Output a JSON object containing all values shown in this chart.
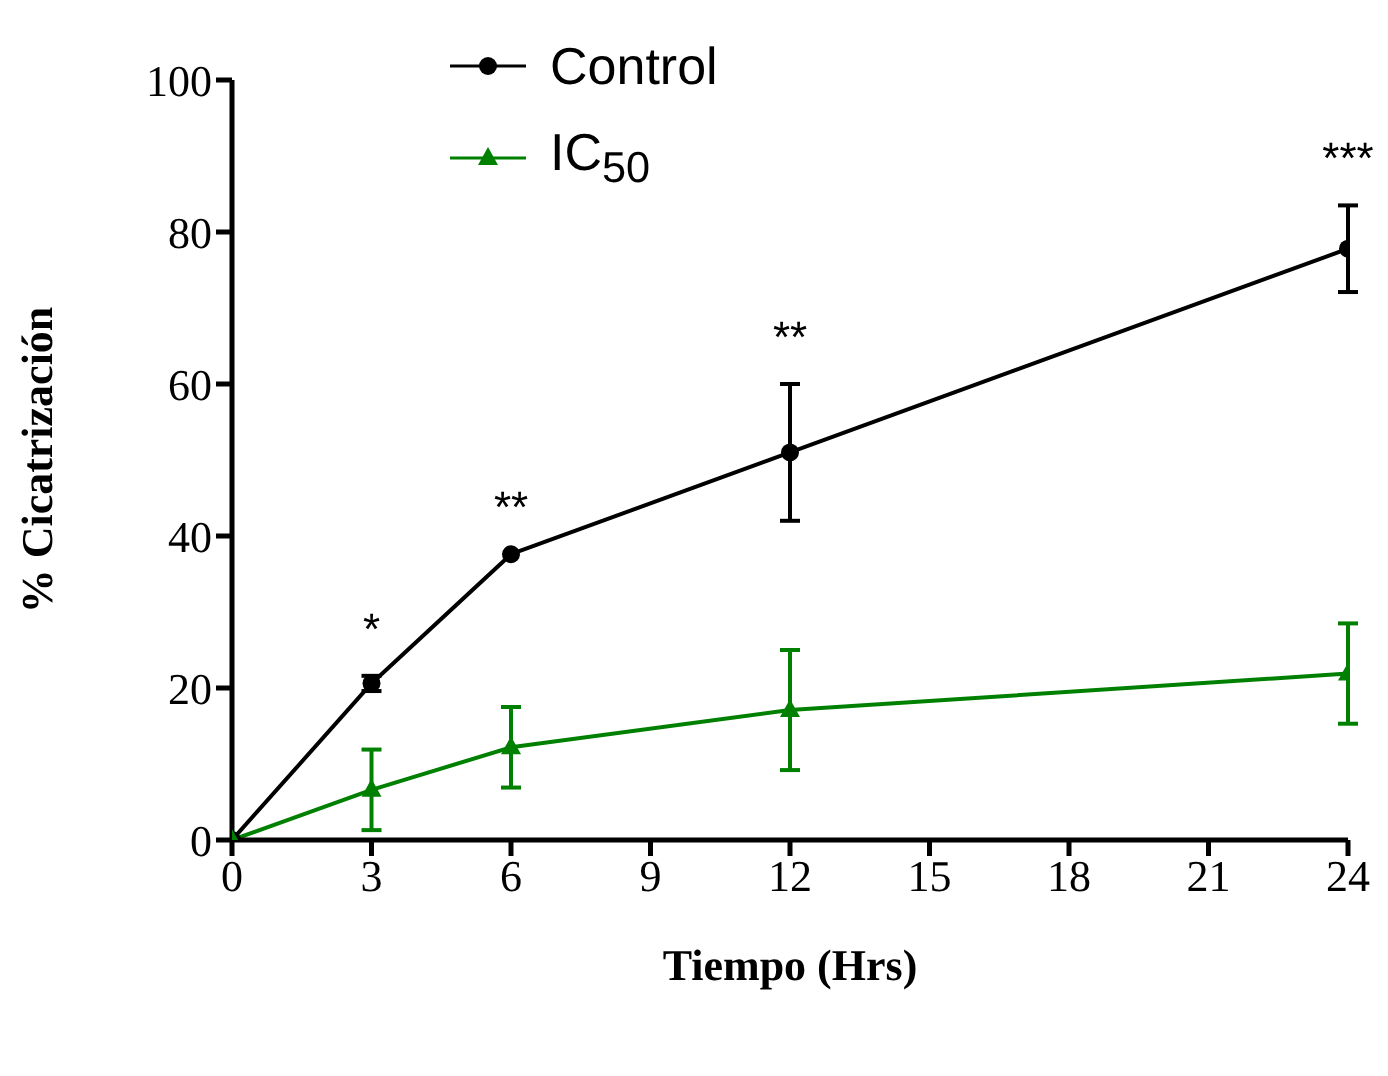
{
  "chart_data": {
    "type": "line",
    "xlabel": "Tiempo (Hrs)",
    "ylabel": "% Cicatrización",
    "x": [
      0,
      3,
      6,
      12,
      24
    ],
    "series": [
      {
        "name": "Control",
        "color": "#000000",
        "marker": "circle",
        "values": [
          0,
          20.6,
          37.6,
          51,
          77.8
        ],
        "errors": [
          null,
          1,
          null,
          9,
          5.7
        ]
      },
      {
        "name": "IC$_{50}$",
        "color": "#008000",
        "marker": "triangle",
        "values": [
          0,
          6.6,
          12.2,
          17.1,
          21.9
        ],
        "errors": [
          null,
          5.3,
          5.3,
          7.9,
          6.6
        ]
      }
    ],
    "annotations": [
      {
        "text": "*",
        "x": 3,
        "y": 20.6
      },
      {
        "text": "**",
        "x": 6,
        "y": 37.6
      },
      {
        "text": "**",
        "x": 12,
        "y": 51
      },
      {
        "text": "***",
        "x": 24,
        "y": 77.8
      }
    ],
    "xlim": [
      0,
      24
    ],
    "xticks": [
      0,
      3,
      6,
      9,
      12,
      15,
      18,
      21,
      24
    ],
    "ylim": [
      0,
      100
    ],
    "yticks": [
      0,
      20,
      40,
      60,
      80,
      100
    ],
    "grid": false,
    "legend": "top",
    "line_style": "solid"
  }
}
